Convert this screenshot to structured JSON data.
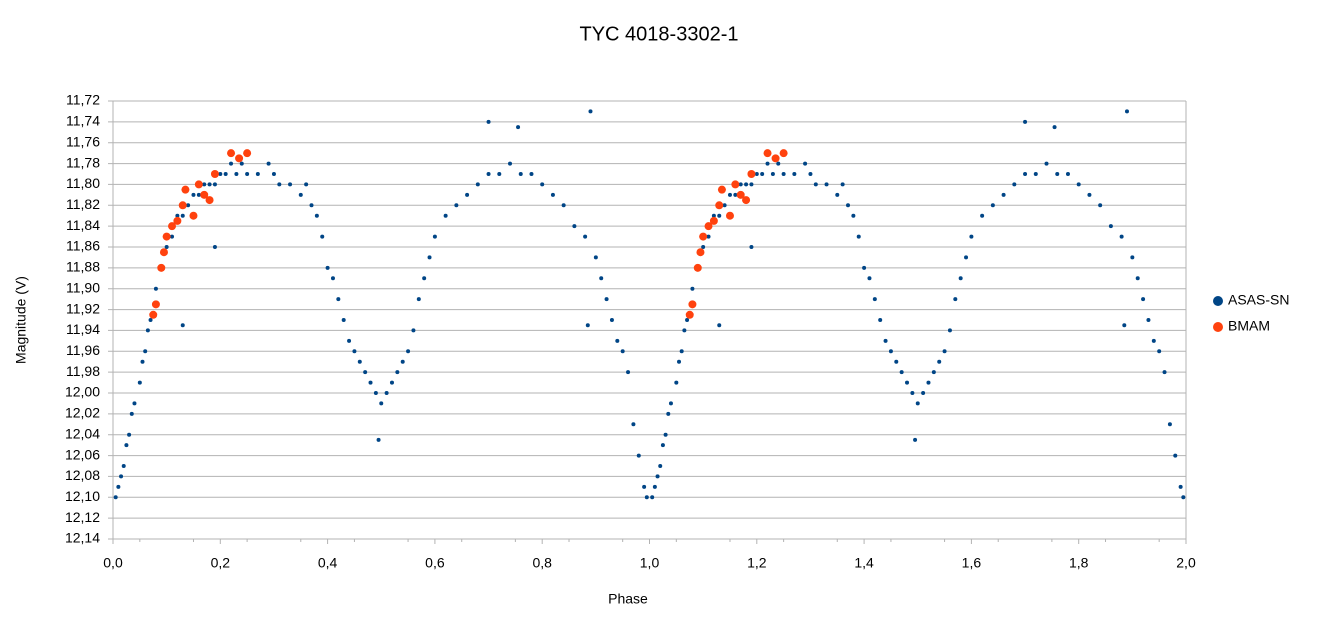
{
  "chart_data": {
    "type": "scatter",
    "title": "TYC 4018-3302-1",
    "x_label": "Phase",
    "y_label": "Magnitude (V)",
    "xlim": [
      0,
      2
    ],
    "ylim": [
      12.14,
      11.72
    ],
    "xticks": [
      {
        "value": 0,
        "label": "0,0"
      },
      {
        "value": 0.2,
        "label": "0,2"
      },
      {
        "value": 0.4,
        "label": "0,4"
      },
      {
        "value": 0.6,
        "label": "0,6"
      },
      {
        "value": 0.8,
        "label": "0,8"
      },
      {
        "value": 1.0,
        "label": "1,0"
      },
      {
        "value": 1.2,
        "label": "1,2"
      },
      {
        "value": 1.4,
        "label": "1,4"
      },
      {
        "value": 1.6,
        "label": "1,6"
      },
      {
        "value": 1.8,
        "label": "1,8"
      },
      {
        "value": 2.0,
        "label": "2,0"
      }
    ],
    "yticks": [
      {
        "value": 11.72,
        "label": "11,72"
      },
      {
        "value": 11.74,
        "label": "11,74"
      },
      {
        "value": 11.76,
        "label": "11,76"
      },
      {
        "value": 11.78,
        "label": "11,78"
      },
      {
        "value": 11.8,
        "label": "11,80"
      },
      {
        "value": 11.82,
        "label": "11,82"
      },
      {
        "value": 11.84,
        "label": "11,84"
      },
      {
        "value": 11.86,
        "label": "11,86"
      },
      {
        "value": 11.88,
        "label": "11,88"
      },
      {
        "value": 11.9,
        "label": "11,90"
      },
      {
        "value": 11.92,
        "label": "11,92"
      },
      {
        "value": 11.94,
        "label": "11,94"
      },
      {
        "value": 11.96,
        "label": "11,96"
      },
      {
        "value": 11.98,
        "label": "11,98"
      },
      {
        "value": 12.0,
        "label": "12,00"
      },
      {
        "value": 12.02,
        "label": "12,02"
      },
      {
        "value": 12.04,
        "label": "12,04"
      },
      {
        "value": 12.06,
        "label": "12,06"
      },
      {
        "value": 12.08,
        "label": "12,08"
      },
      {
        "value": 12.1,
        "label": "12,10"
      },
      {
        "value": 12.12,
        "label": "12,12"
      },
      {
        "value": 12.14,
        "label": "12,14"
      }
    ],
    "grid": true,
    "legend": "right",
    "series": [
      {
        "name": "ASAS-SN",
        "color": "#004586",
        "size": 2,
        "x": [
          0.005,
          0.01,
          0.015,
          0.02,
          0.025,
          0.03,
          0.035,
          0.04,
          0.05,
          0.055,
          0.06,
          0.065,
          0.07,
          0.08,
          0.09,
          0.1,
          0.11,
          0.12,
          0.13,
          0.14,
          0.15,
          0.16,
          0.17,
          0.18,
          0.19,
          0.2,
          0.21,
          0.22,
          0.23,
          0.24,
          0.25,
          0.27,
          0.29,
          0.3,
          0.31,
          0.33,
          0.35,
          0.36,
          0.37,
          0.38,
          0.39,
          0.4,
          0.41,
          0.42,
          0.43,
          0.44,
          0.45,
          0.46,
          0.47,
          0.48,
          0.49,
          0.5,
          0.51,
          0.52,
          0.53,
          0.54,
          0.55,
          0.56,
          0.57,
          0.58,
          0.59,
          0.6,
          0.62,
          0.64,
          0.66,
          0.68,
          0.7,
          0.72,
          0.74,
          0.76,
          0.78,
          0.8,
          0.82,
          0.84,
          0.86,
          0.88,
          0.9,
          0.91,
          0.92,
          0.93,
          0.94,
          0.95,
          0.96,
          0.97,
          0.98,
          0.99,
          0.995,
          0.13,
          0.7,
          0.755,
          0.89,
          0.885,
          0.19,
          0.495,
          1.005,
          1.01,
          1.015,
          1.02,
          1.025,
          1.03,
          1.035,
          1.04,
          1.05,
          1.055,
          1.06,
          1.065,
          1.07,
          1.08,
          1.09,
          1.1,
          1.11,
          1.12,
          1.13,
          1.14,
          1.15,
          1.16,
          1.17,
          1.18,
          1.19,
          1.2,
          1.21,
          1.22,
          1.23,
          1.24,
          1.25,
          1.27,
          1.29,
          1.3,
          1.31,
          1.33,
          1.35,
          1.36,
          1.37,
          1.38,
          1.39,
          1.4,
          1.41,
          1.42,
          1.43,
          1.44,
          1.45,
          1.46,
          1.47,
          1.48,
          1.49,
          1.5,
          1.51,
          1.52,
          1.53,
          1.54,
          1.55,
          1.56,
          1.57,
          1.58,
          1.59,
          1.6,
          1.62,
          1.64,
          1.66,
          1.68,
          1.7,
          1.72,
          1.74,
          1.76,
          1.78,
          1.8,
          1.82,
          1.84,
          1.86,
          1.88,
          1.9,
          1.91,
          1.92,
          1.93,
          1.94,
          1.95,
          1.96,
          1.97,
          1.98,
          1.99,
          1.995,
          1.13,
          1.7,
          1.755,
          1.89,
          1.885,
          1.19,
          1.495
        ],
        "values": [
          12.1,
          12.09,
          12.08,
          12.07,
          12.05,
          12.04,
          12.02,
          12.01,
          11.99,
          11.97,
          11.96,
          11.94,
          11.93,
          11.9,
          11.88,
          11.86,
          11.85,
          11.83,
          11.83,
          11.82,
          11.81,
          11.81,
          11.8,
          11.8,
          11.8,
          11.79,
          11.79,
          11.78,
          11.79,
          11.78,
          11.79,
          11.79,
          11.78,
          11.79,
          11.8,
          11.8,
          11.81,
          11.8,
          11.82,
          11.83,
          11.85,
          11.88,
          11.89,
          11.91,
          11.93,
          11.95,
          11.96,
          11.97,
          11.98,
          11.99,
          12.0,
          12.01,
          12.0,
          11.99,
          11.98,
          11.97,
          11.96,
          11.94,
          11.91,
          11.89,
          11.87,
          11.85,
          11.83,
          11.82,
          11.81,
          11.8,
          11.79,
          11.79,
          11.78,
          11.79,
          11.79,
          11.8,
          11.81,
          11.82,
          11.84,
          11.85,
          11.87,
          11.89,
          11.91,
          11.93,
          11.95,
          11.96,
          11.98,
          12.03,
          12.06,
          12.09,
          12.1,
          11.935,
          11.74,
          11.745,
          11.73,
          11.935,
          11.86,
          12.045,
          12.1,
          12.09,
          12.08,
          12.07,
          12.05,
          12.04,
          12.02,
          12.01,
          11.99,
          11.97,
          11.96,
          11.94,
          11.93,
          11.9,
          11.88,
          11.86,
          11.85,
          11.83,
          11.83,
          11.82,
          11.81,
          11.81,
          11.8,
          11.8,
          11.8,
          11.79,
          11.79,
          11.78,
          11.79,
          11.78,
          11.79,
          11.79,
          11.78,
          11.79,
          11.8,
          11.8,
          11.81,
          11.8,
          11.82,
          11.83,
          11.85,
          11.88,
          11.89,
          11.91,
          11.93,
          11.95,
          11.96,
          11.97,
          11.98,
          11.99,
          12.0,
          12.01,
          12.0,
          11.99,
          11.98,
          11.97,
          11.96,
          11.94,
          11.91,
          11.89,
          11.87,
          11.85,
          11.83,
          11.82,
          11.81,
          11.8,
          11.79,
          11.79,
          11.78,
          11.79,
          11.79,
          11.8,
          11.81,
          11.82,
          11.84,
          11.85,
          11.87,
          11.89,
          11.91,
          11.93,
          11.95,
          11.96,
          11.98,
          12.03,
          12.06,
          12.09,
          12.1,
          11.935,
          11.74,
          11.745,
          11.73,
          11.935,
          11.86,
          12.045
        ]
      },
      {
        "name": "BMAM",
        "color": "#ff420e",
        "size": 4,
        "x": [
          0.075,
          0.08,
          0.09,
          0.095,
          0.1,
          0.11,
          0.12,
          0.13,
          0.135,
          0.15,
          0.16,
          0.17,
          0.18,
          0.19,
          0.22,
          0.235,
          0.25,
          1.075,
          1.08,
          1.09,
          1.095,
          1.1,
          1.11,
          1.12,
          1.13,
          1.135,
          1.15,
          1.16,
          1.17,
          1.18,
          1.19,
          1.22,
          1.235,
          1.25
        ],
        "values": [
          11.925,
          11.915,
          11.88,
          11.865,
          11.85,
          11.84,
          11.835,
          11.82,
          11.805,
          11.83,
          11.8,
          11.81,
          11.815,
          11.79,
          11.77,
          11.775,
          11.77,
          11.925,
          11.915,
          11.88,
          11.865,
          11.85,
          11.84,
          11.835,
          11.82,
          11.805,
          11.83,
          11.8,
          11.81,
          11.815,
          11.79,
          11.77,
          11.775,
          11.77
        ]
      }
    ]
  }
}
